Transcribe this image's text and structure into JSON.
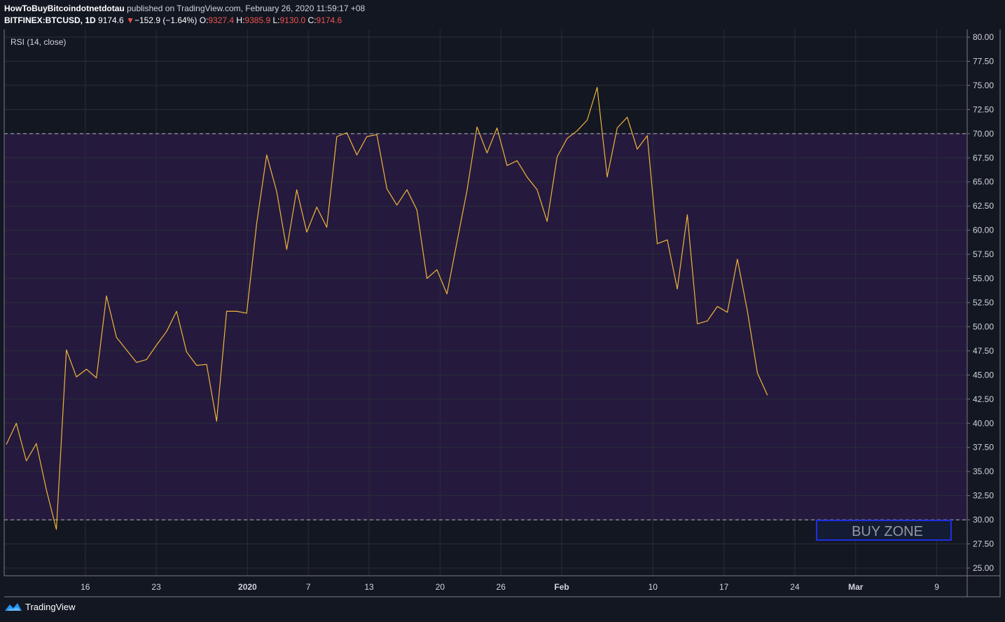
{
  "header": {
    "author": "HowToBuyBitcoindotnetdotau",
    "published_text": "published on TradingView.com, February 26, 2020 11:59:17 +08",
    "symbol": "BITFINEX:BTCUSD, 1D",
    "last_price": "9174.6",
    "change_arrow": "▼",
    "change": "−152.9 (−1.64%)",
    "open_label": "O:",
    "open": "9327.4",
    "high_label": "H:",
    "high": "9385.9",
    "low_label": "L:",
    "low": "9130.0",
    "close_label": "C:",
    "close": "9174.6"
  },
  "indicator_label": "RSI (14, close)",
  "footer": {
    "brand": "TradingView"
  },
  "colors": {
    "background": "#131722",
    "rsi_line": "#f0b43c",
    "band_fill": "#251a3d",
    "grid": "#2a2e39",
    "dashed": "#b2b5be",
    "buy_zone_border": "#1f2fe0",
    "buy_zone_text": "#9598a1",
    "down": "#ef5350"
  },
  "chart_data": {
    "type": "line",
    "ylim": [
      24.2,
      80.8
    ],
    "y_ticks": [
      "80.00",
      "77.50",
      "75.00",
      "72.50",
      "70.00",
      "67.50",
      "65.00",
      "62.50",
      "60.00",
      "57.50",
      "55.00",
      "52.50",
      "50.00",
      "47.50",
      "45.00",
      "42.50",
      "40.00",
      "37.50",
      "35.00",
      "32.50",
      "30.00",
      "27.50",
      "25.00"
    ],
    "x_range_days": [
      -8,
      87
    ],
    "x_ticks": [
      {
        "label": "16",
        "day": 0
      },
      {
        "label": "23",
        "day": 7
      },
      {
        "label": "2020",
        "day": 16
      },
      {
        "label": "7",
        "day": 22
      },
      {
        "label": "13",
        "day": 28
      },
      {
        "label": "20",
        "day": 35
      },
      {
        "label": "26",
        "day": 41
      },
      {
        "label": "Feb",
        "day": 47
      },
      {
        "label": "10",
        "day": 56
      },
      {
        "label": "17",
        "day": 63
      },
      {
        "label": "24",
        "day": 70
      },
      {
        "label": "Mar",
        "day": 76
      },
      {
        "label": "9",
        "day": 84
      }
    ],
    "overbought": 70,
    "oversold": 30,
    "series": [
      {
        "values": [
          37.8,
          40.0,
          36.1,
          37.9,
          33.1,
          29.0,
          47.6,
          44.8,
          45.6,
          44.7,
          53.2,
          48.9,
          47.6,
          46.3,
          46.6,
          48.1,
          49.5,
          51.6,
          47.4,
          46.0,
          46.1,
          40.2,
          51.6,
          51.6,
          51.4,
          60.7,
          67.8,
          64.0,
          58.0,
          64.2,
          59.8,
          62.4,
          60.3,
          69.7,
          70.1,
          67.8,
          69.7,
          69.9,
          64.3,
          62.6,
          64.2,
          62.1,
          55.0,
          55.9,
          53.4,
          58.8,
          64.1,
          70.7,
          68.0,
          70.6,
          66.7,
          67.2,
          65.5,
          64.2,
          60.9,
          67.6,
          69.5,
          70.3,
          71.4,
          74.8,
          65.5,
          70.6,
          71.7,
          68.4,
          69.8,
          58.6,
          59.0,
          53.9,
          61.6,
          50.3,
          50.6,
          52.1,
          51.5,
          57.0,
          51.6,
          45.2,
          42.9
        ]
      }
    ]
  },
  "annotation": {
    "text": "BUY ZONE"
  }
}
